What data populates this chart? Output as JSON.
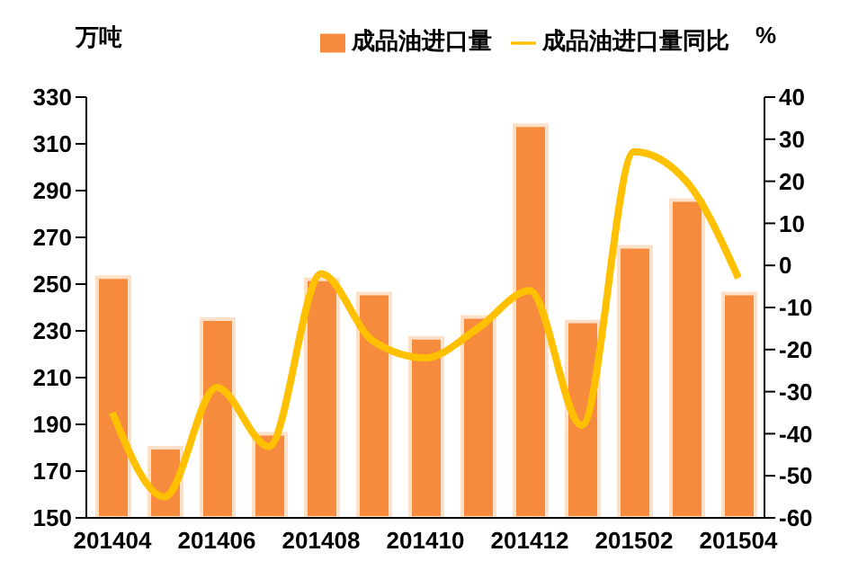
{
  "chart_data": {
    "type": "bar",
    "ylabel": "万吨",
    "y2label": "%",
    "categories": [
      "201404",
      null,
      "201406",
      null,
      "201408",
      null,
      "201410",
      null,
      "201412",
      null,
      "201502",
      null,
      "201504"
    ],
    "series": [
      {
        "name": "成品油进口量",
        "color": "#f68b3d",
        "values": [
          253,
          180,
          235,
          186,
          252,
          246,
          227,
          236,
          318,
          234,
          266,
          286,
          246
        ]
      },
      {
        "name": "成品油进口量同比",
        "type": "line",
        "axis": "y2",
        "color": "#ffc000",
        "values": [
          -35,
          -55,
          -29,
          -43,
          -2,
          -18,
          -22,
          -15,
          -6,
          -38,
          27,
          20,
          -3
        ]
      }
    ],
    "ylim": [
      150,
      330
    ],
    "yticks": [
      150,
      170,
      190,
      210,
      230,
      250,
      270,
      290,
      310,
      330
    ],
    "y2lim": [
      -60,
      40
    ],
    "y2ticks": [
      -60,
      -50,
      -40,
      -30,
      -20,
      -10,
      0,
      10,
      20,
      30,
      40
    ],
    "legend": "top",
    "grid": false,
    "marker": "none",
    "line_style": "solid"
  }
}
